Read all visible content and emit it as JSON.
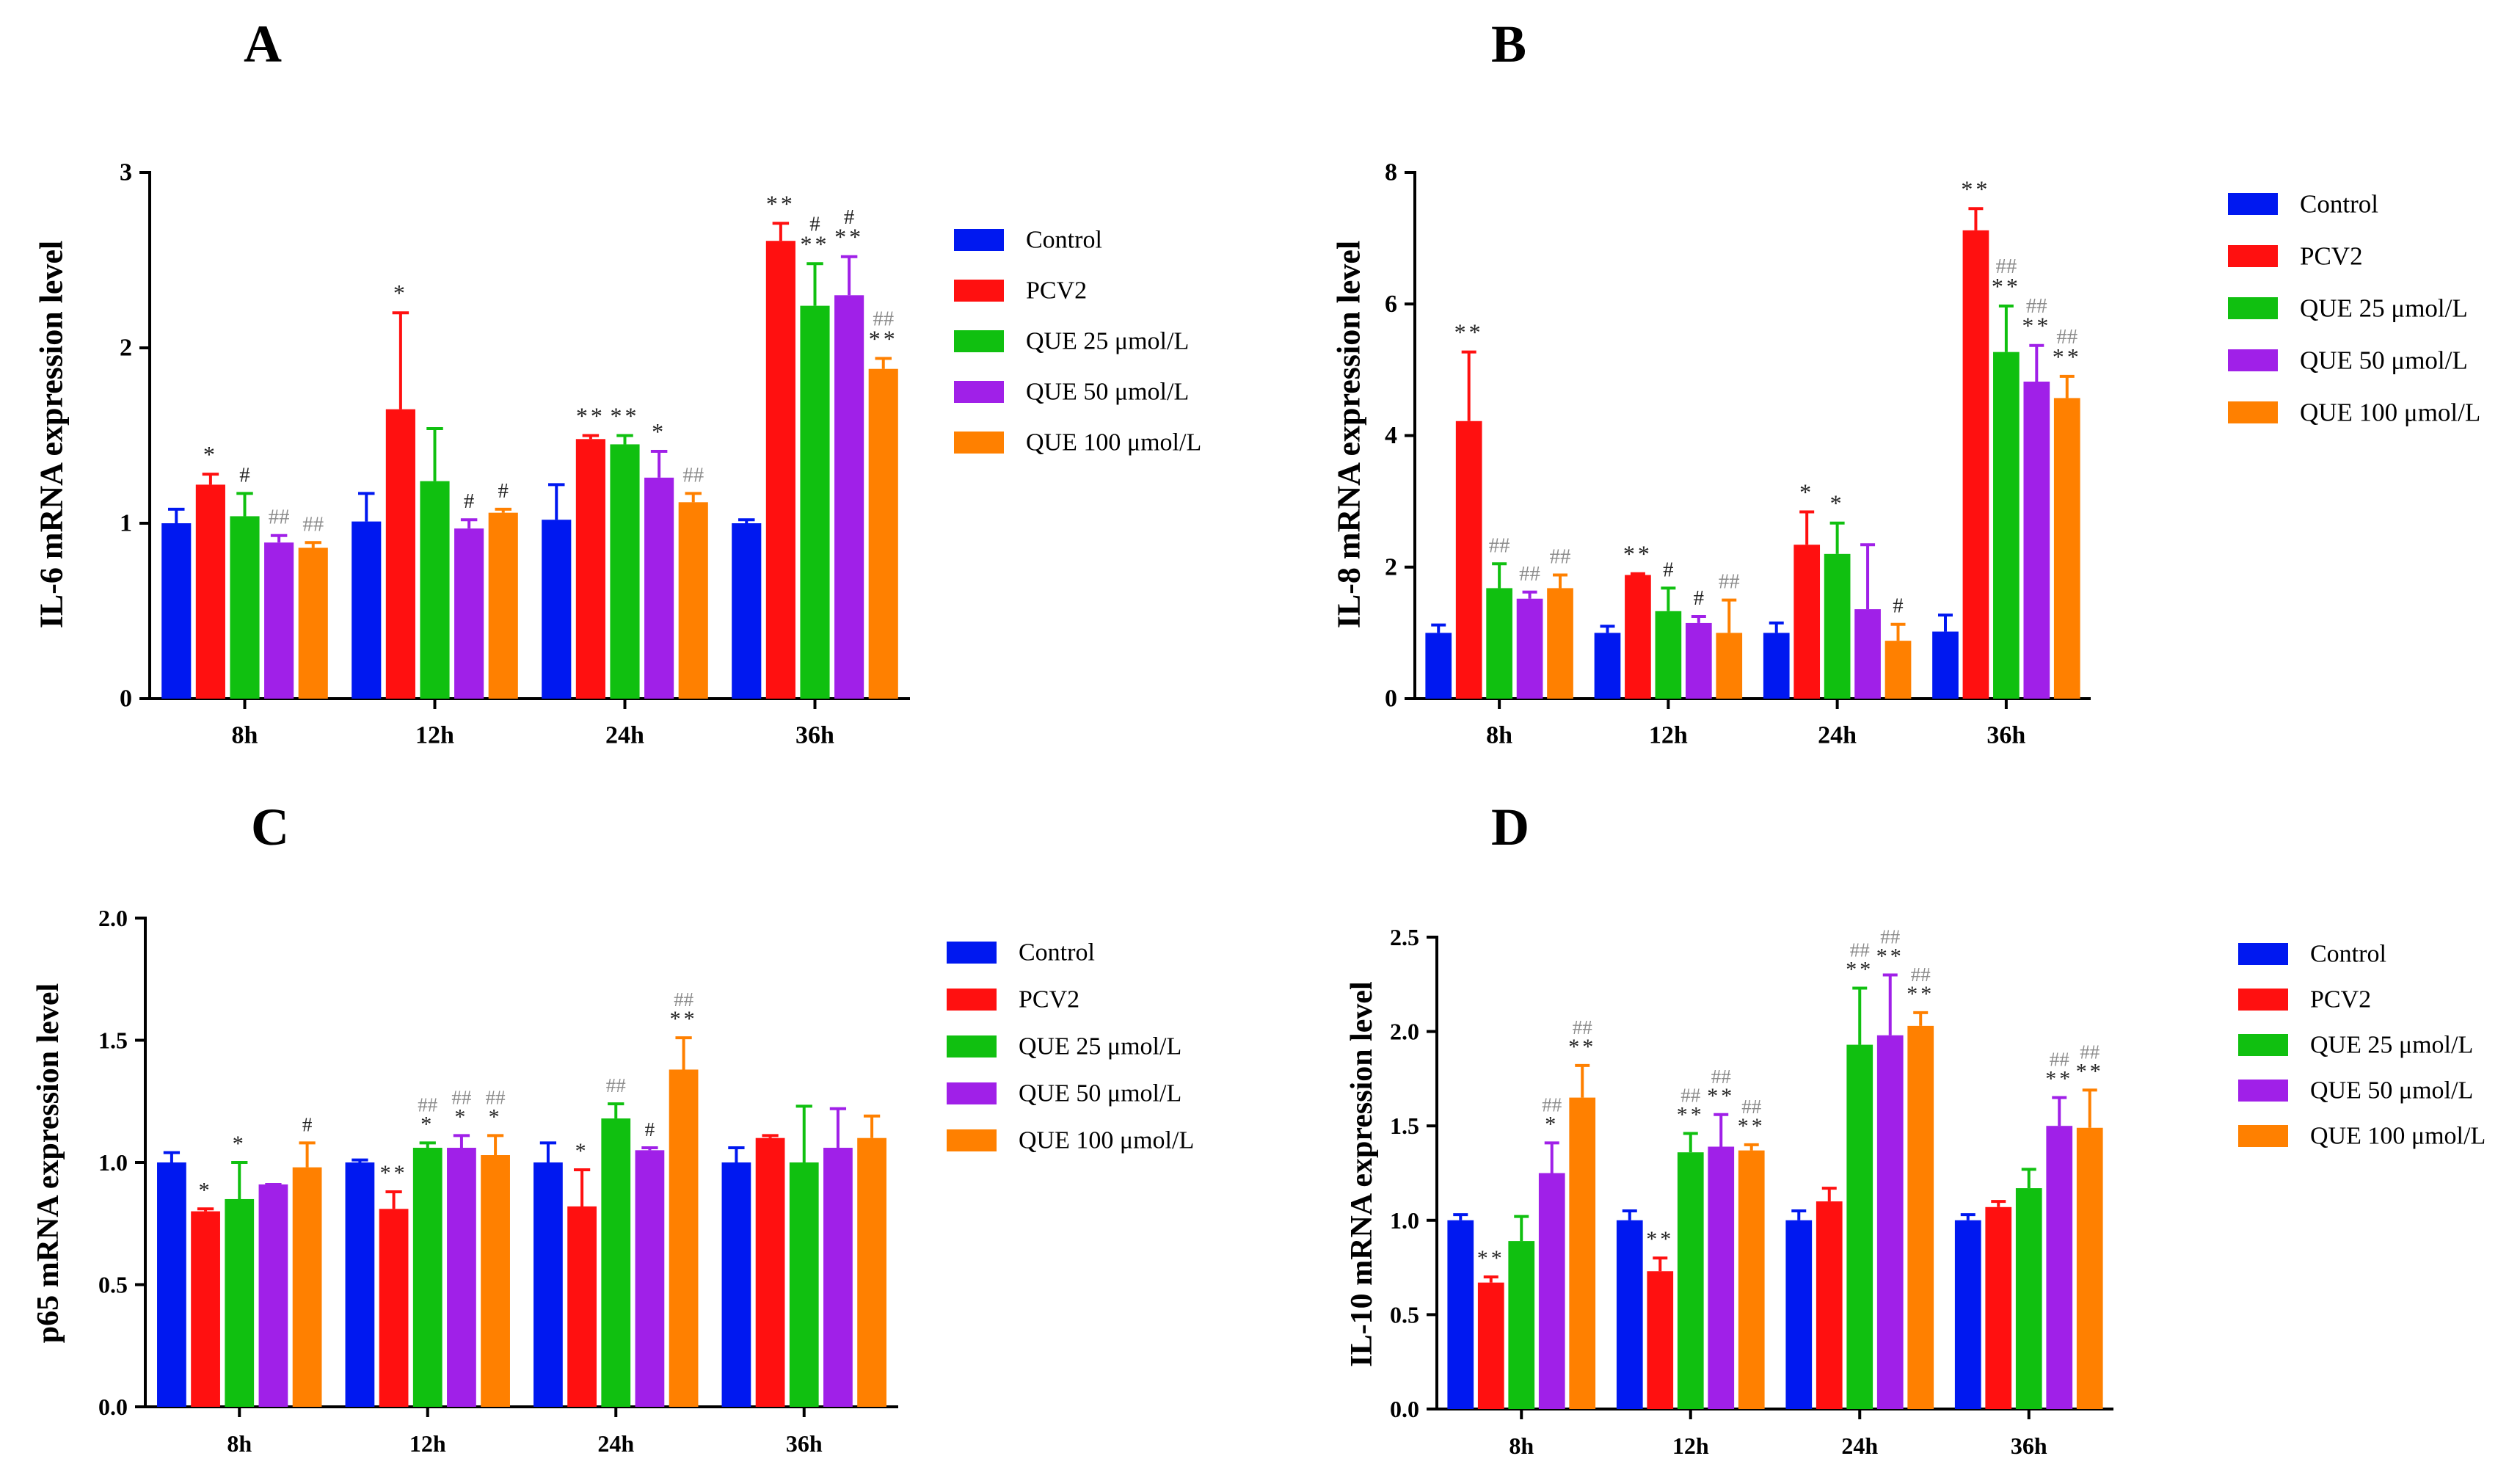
{
  "figure": {
    "colors": [
      "#0018f0",
      "#ff1010",
      "#10c010",
      "#a020e8",
      "#ff8000"
    ],
    "legend": [
      "Control",
      "PCV2",
      "QUE 25 μmol/L",
      "QUE 50 μmol/L",
      "QUE 100 μmol/L"
    ]
  },
  "chart_data": [
    {
      "panel": "A",
      "type": "bar",
      "ylabel": "IL-6 mRNA expression level",
      "ylim": [
        0,
        3
      ],
      "yticks": [
        "0",
        "1",
        "2",
        "3"
      ],
      "categories": [
        "8h",
        "12h",
        "24h",
        "36h"
      ],
      "series": [
        {
          "name": "Control",
          "values": [
            1.0,
            1.01,
            1.02,
            1.0
          ],
          "errors": [
            0.08,
            0.16,
            0.2,
            0.02
          ],
          "marks_star": [
            "",
            "",
            "",
            ""
          ],
          "marks_hash": [
            "",
            "",
            "",
            ""
          ]
        },
        {
          "name": "PCV2",
          "values": [
            1.22,
            1.65,
            1.48,
            2.61
          ],
          "errors": [
            0.06,
            0.55,
            0.02,
            0.1
          ],
          "marks_star": [
            "*",
            "*",
            "**",
            "**"
          ],
          "marks_hash": [
            "",
            "",
            "",
            ""
          ]
        },
        {
          "name": "QUE 25 μmol/L",
          "values": [
            1.04,
            1.24,
            1.45,
            2.24
          ],
          "errors": [
            0.13,
            0.3,
            0.05,
            0.24
          ],
          "marks_star": [
            "",
            "",
            "**",
            "**"
          ],
          "marks_hash": [
            "#",
            "",
            "",
            "#"
          ]
        },
        {
          "name": "QUE 50 μmol/L",
          "values": [
            0.89,
            0.97,
            1.26,
            2.3
          ],
          "errors": [
            0.04,
            0.05,
            0.15,
            0.22
          ],
          "marks_star": [
            "",
            "",
            "*",
            "**"
          ],
          "marks_hash": [
            "##",
            "#",
            "",
            "#"
          ]
        },
        {
          "name": "QUE 100 μmol/L",
          "values": [
            0.86,
            1.06,
            1.12,
            1.88
          ],
          "errors": [
            0.03,
            0.02,
            0.05,
            0.06
          ],
          "marks_star": [
            "",
            "",
            "",
            "**"
          ],
          "marks_hash": [
            "##",
            "#",
            "##",
            "##"
          ]
        }
      ]
    },
    {
      "panel": "B",
      "type": "bar",
      "ylabel": "IL-8 mRNA expression level",
      "ylim": [
        0,
        8
      ],
      "yticks": [
        "0",
        "2",
        "4",
        "6",
        "8"
      ],
      "categories": [
        "8h",
        "12h",
        "24h",
        "36h"
      ],
      "series": [
        {
          "name": "Control",
          "values": [
            1.0,
            1.0,
            1.0,
            1.02
          ],
          "errors": [
            0.12,
            0.1,
            0.15,
            0.25
          ],
          "marks_star": [
            "",
            "",
            "",
            ""
          ],
          "marks_hash": [
            "",
            "",
            "",
            ""
          ]
        },
        {
          "name": "PCV2",
          "values": [
            4.22,
            1.88,
            2.34,
            7.12
          ],
          "errors": [
            1.05,
            0.02,
            0.5,
            0.33
          ],
          "marks_star": [
            "**",
            "**",
            "*",
            "**"
          ],
          "marks_hash": [
            "",
            "",
            "",
            ""
          ]
        },
        {
          "name": "QUE 25 μmol/L",
          "values": [
            1.68,
            1.33,
            2.2,
            5.27
          ],
          "errors": [
            0.37,
            0.35,
            0.47,
            0.7
          ],
          "marks_star": [
            "",
            "",
            "*",
            "**"
          ],
          "marks_hash": [
            "##",
            "#",
            "",
            "##"
          ]
        },
        {
          "name": "QUE 50 μmol/L",
          "values": [
            1.52,
            1.15,
            1.36,
            4.82
          ],
          "errors": [
            0.1,
            0.1,
            0.98,
            0.55
          ],
          "marks_star": [
            "",
            "",
            "",
            "**"
          ],
          "marks_hash": [
            "##",
            "#",
            "",
            "##"
          ]
        },
        {
          "name": "QUE 100 μmol/L",
          "values": [
            1.68,
            1.0,
            0.88,
            4.57
          ],
          "errors": [
            0.2,
            0.5,
            0.25,
            0.33
          ],
          "marks_star": [
            "",
            "",
            "",
            "**"
          ],
          "marks_hash": [
            "##",
            "##",
            "#",
            "##"
          ]
        }
      ]
    },
    {
      "panel": "C",
      "type": "bar",
      "ylabel": "p65 mRNA expression level",
      "ylim": [
        0,
        2
      ],
      "yticks": [
        "0.0",
        "0.5",
        "1.0",
        "1.5",
        "2.0"
      ],
      "categories": [
        "8h",
        "12h",
        "24h",
        "36h"
      ],
      "series": [
        {
          "name": "Control",
          "values": [
            1.0,
            1.0,
            1.0,
            1.0
          ],
          "errors": [
            0.04,
            0.01,
            0.08,
            0.06
          ],
          "marks_star": [
            "",
            "",
            "",
            ""
          ],
          "marks_hash": [
            "",
            "",
            "",
            ""
          ]
        },
        {
          "name": "PCV2",
          "values": [
            0.8,
            0.81,
            0.82,
            1.1
          ],
          "errors": [
            0.01,
            0.07,
            0.15,
            0.01
          ],
          "marks_star": [
            "*",
            "**",
            "*",
            ""
          ],
          "marks_hash": [
            "",
            "",
            "",
            ""
          ]
        },
        {
          "name": "QUE 25 μmol/L",
          "values": [
            0.85,
            1.06,
            1.18,
            1.0
          ],
          "errors": [
            0.15,
            0.02,
            0.06,
            0.23
          ],
          "marks_star": [
            "*",
            "*",
            "",
            ""
          ],
          "marks_hash": [
            "",
            "##",
            "##",
            ""
          ]
        },
        {
          "name": "QUE 50 μmol/L",
          "values": [
            0.91,
            1.06,
            1.05,
            1.06
          ],
          "errors": [
            0.0,
            0.05,
            0.01,
            0.16
          ],
          "marks_star": [
            "",
            "*",
            "",
            ""
          ],
          "marks_hash": [
            "",
            "##",
            "#",
            ""
          ]
        },
        {
          "name": "QUE 100 μmol/L",
          "values": [
            0.98,
            1.03,
            1.38,
            1.1
          ],
          "errors": [
            0.1,
            0.08,
            0.13,
            0.09
          ],
          "marks_star": [
            "",
            "*",
            "**",
            ""
          ],
          "marks_hash": [
            "#",
            "##",
            "##",
            ""
          ]
        }
      ]
    },
    {
      "panel": "D",
      "type": "bar",
      "ylabel": "IL-10 mRNA expression level",
      "ylim": [
        0,
        2.5
      ],
      "yticks": [
        "0.0",
        "0.5",
        "1.0",
        "1.5",
        "2.0",
        "2.5"
      ],
      "categories": [
        "8h",
        "12h",
        "24h",
        "36h"
      ],
      "series": [
        {
          "name": "Control",
          "values": [
            1.0,
            1.0,
            1.0,
            1.0
          ],
          "errors": [
            0.03,
            0.05,
            0.05,
            0.03
          ],
          "marks_star": [
            "",
            "",
            "",
            ""
          ],
          "marks_hash": [
            "",
            "",
            "",
            ""
          ]
        },
        {
          "name": "PCV2",
          "values": [
            0.67,
            0.73,
            1.1,
            1.07
          ],
          "errors": [
            0.03,
            0.07,
            0.07,
            0.03
          ],
          "marks_star": [
            "**",
            "**",
            "",
            ""
          ],
          "marks_hash": [
            "",
            "",
            "",
            ""
          ]
        },
        {
          "name": "QUE 25 μmol/L",
          "values": [
            0.89,
            1.36,
            1.93,
            1.17
          ],
          "errors": [
            0.13,
            0.1,
            0.3,
            0.1
          ],
          "marks_star": [
            "",
            "**",
            "**",
            ""
          ],
          "marks_hash": [
            "",
            "##",
            "##",
            ""
          ]
        },
        {
          "name": "QUE 50 μmol/L",
          "values": [
            1.25,
            1.39,
            1.98,
            1.5
          ],
          "errors": [
            0.16,
            0.17,
            0.32,
            0.15
          ],
          "marks_star": [
            "*",
            "**",
            "**",
            "**"
          ],
          "marks_hash": [
            "##",
            "##",
            "##",
            "##"
          ]
        },
        {
          "name": "QUE 100 μmol/L",
          "values": [
            1.65,
            1.37,
            2.03,
            1.49
          ],
          "errors": [
            0.17,
            0.03,
            0.07,
            0.2
          ],
          "marks_star": [
            "**",
            "**",
            "**",
            "**"
          ],
          "marks_hash": [
            "##",
            "##",
            "##",
            "##"
          ]
        }
      ]
    }
  ]
}
